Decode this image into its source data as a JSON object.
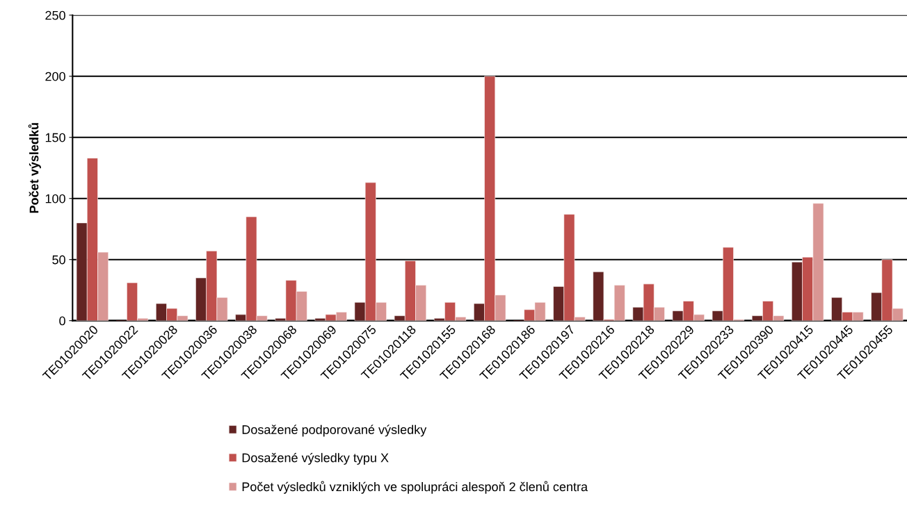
{
  "chart_data": {
    "type": "bar",
    "ylabel": "Počet výsledků",
    "categories": [
      "TE01020020",
      "TE01020022",
      "TE01020028",
      "TE01020036",
      "TE01020038",
      "TE01020068",
      "TE01020069",
      "TE01020075",
      "TE01020118",
      "TE01020155",
      "TE01020168",
      "TE01020186",
      "TE01020197",
      "TE01020216",
      "TE01020218",
      "TE01020229",
      "TE01020233",
      "TE01020390",
      "TE01020415",
      "TE01020445",
      "TE01020455"
    ],
    "series": [
      {
        "name": "Dosažené podporované výsledky",
        "color": "#632423",
        "values": [
          80,
          0,
          14,
          35,
          5,
          2,
          2,
          15,
          4,
          2,
          14,
          0,
          28,
          40,
          11,
          8,
          8,
          4,
          48,
          19,
          23
        ]
      },
      {
        "name": "Dosažené výsledky typu X",
        "color": "#c0504d",
        "values": [
          133,
          31,
          10,
          57,
          85,
          33,
          5,
          113,
          49,
          15,
          200,
          9,
          87,
          1,
          30,
          16,
          60,
          16,
          52,
          7,
          50
        ]
      },
      {
        "name": "Počet výsledků vzniklých ve spolupráci alespoň 2 členů centra",
        "color": "#d99694",
        "values": [
          56,
          2,
          4,
          19,
          4,
          24,
          7,
          15,
          29,
          3,
          21,
          15,
          3,
          29,
          11,
          5,
          1,
          4,
          96,
          7,
          10
        ]
      }
    ],
    "ylim": [
      0,
      250
    ],
    "yticks": [
      0,
      50,
      100,
      150,
      200,
      250
    ],
    "grid": "y",
    "legend": "bottom"
  }
}
